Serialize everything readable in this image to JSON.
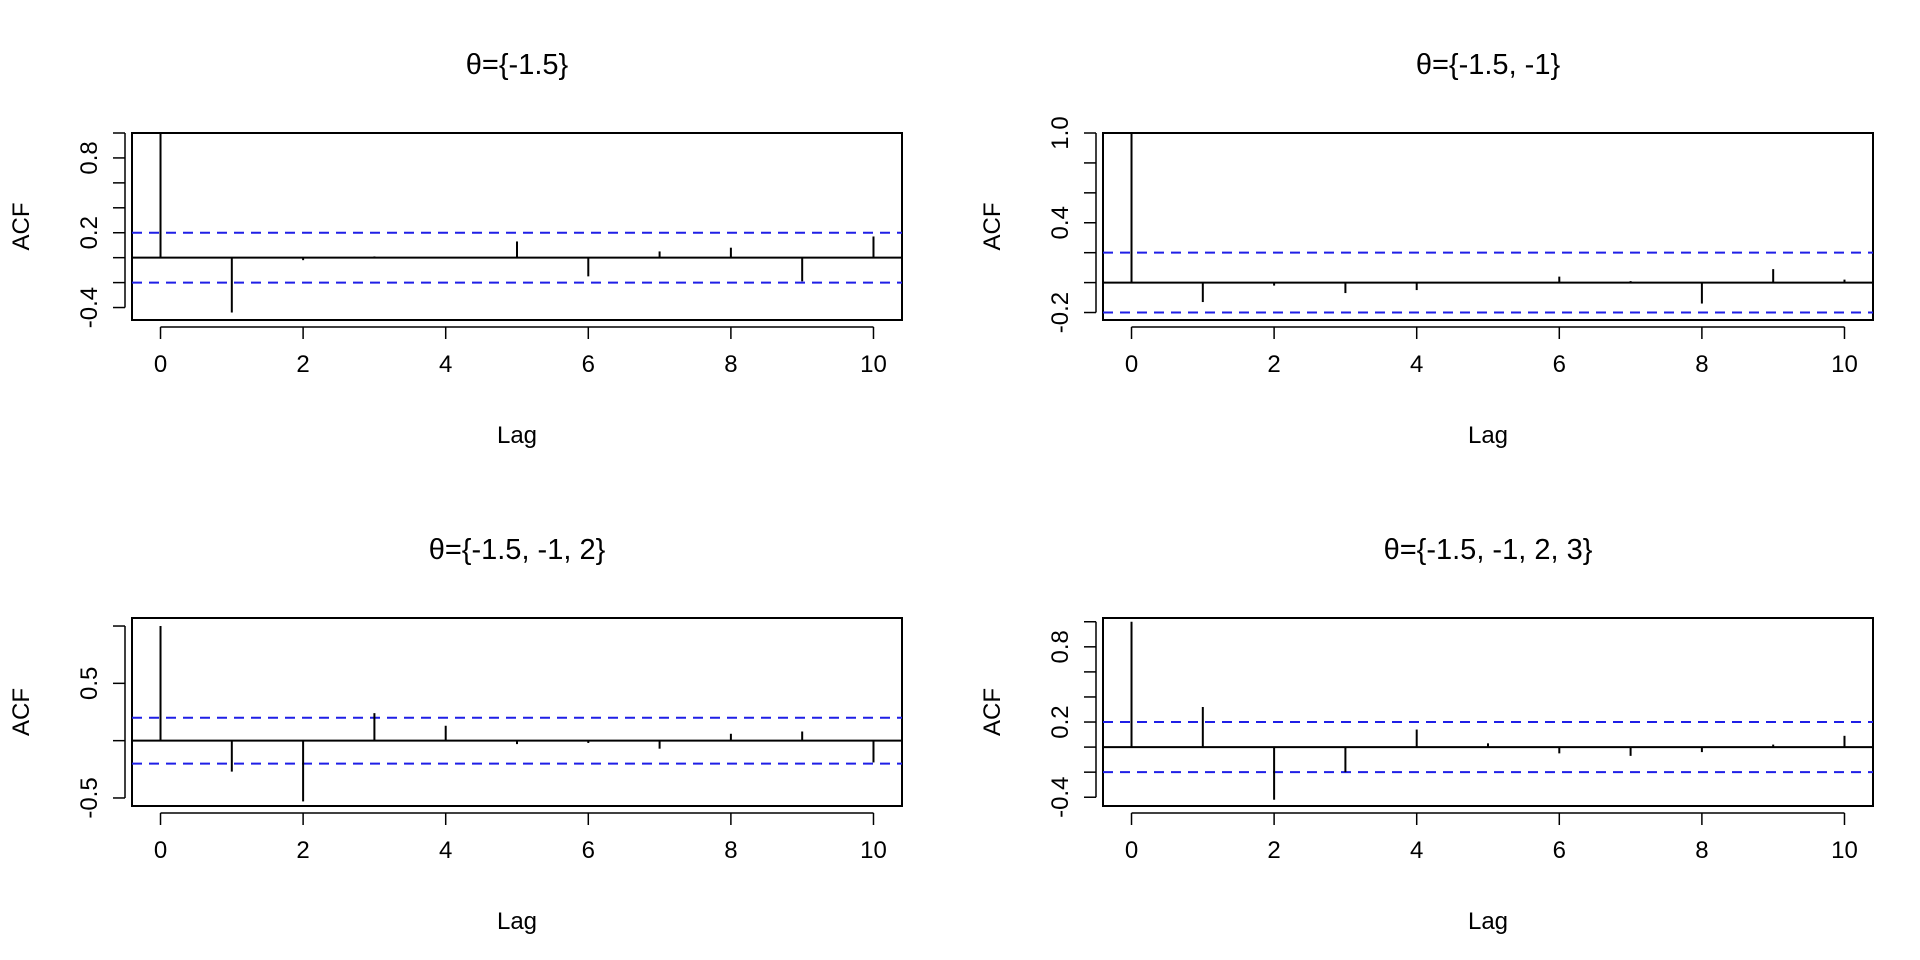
{
  "chart_data": [
    {
      "type": "bar",
      "title": "θ={-1.5}",
      "xlabel": "Lag",
      "ylabel": "ACF",
      "xlim": [
        -0.4,
        10.4
      ],
      "ylim": [
        -0.5,
        1.0
      ],
      "x_ticks": [
        0,
        2,
        4,
        6,
        8,
        10
      ],
      "x_tick_labels": [
        "0",
        "2",
        "4",
        "6",
        "8",
        "10"
      ],
      "y_ticks": [
        -0.4,
        -0.2,
        0.0,
        0.2,
        0.4,
        0.6,
        0.8,
        1.0
      ],
      "y_tick_labels": [
        "-0.4",
        "",
        "",
        "0.2",
        "",
        "",
        "0.8",
        ""
      ],
      "lags": [
        0,
        1,
        2,
        3,
        4,
        5,
        6,
        7,
        8,
        9,
        10
      ],
      "values": [
        1.0,
        -0.44,
        -0.02,
        0.01,
        0.0,
        0.13,
        -0.15,
        0.05,
        0.08,
        -0.19,
        0.17
      ],
      "ci": 0.2,
      "ci_color": "#1f1fe6",
      "bar_color": "#000000"
    },
    {
      "type": "bar",
      "title": "θ={-1.5, -1}",
      "xlabel": "Lag",
      "ylabel": "ACF",
      "xlim": [
        -0.4,
        10.4
      ],
      "ylim": [
        -0.25,
        1.0
      ],
      "x_ticks": [
        0,
        2,
        4,
        6,
        8,
        10
      ],
      "x_tick_labels": [
        "0",
        "2",
        "4",
        "6",
        "8",
        "10"
      ],
      "y_ticks": [
        -0.2,
        0.0,
        0.2,
        0.4,
        0.6,
        0.8,
        1.0
      ],
      "y_tick_labels": [
        "-0.2",
        "",
        "",
        "0.4",
        "",
        "",
        "1.0"
      ],
      "lags": [
        0,
        1,
        2,
        3,
        4,
        5,
        6,
        7,
        8,
        9,
        10
      ],
      "values": [
        1.0,
        -0.13,
        -0.02,
        -0.07,
        -0.05,
        0.0,
        0.04,
        0.01,
        -0.14,
        0.09,
        0.02
      ],
      "ci": 0.2,
      "ci_color": "#1f1fe6",
      "bar_color": "#000000"
    },
    {
      "type": "bar",
      "title": "θ={-1.5, -1, 2}",
      "xlabel": "Lag",
      "ylabel": "ACF",
      "xlim": [
        -0.4,
        10.4
      ],
      "ylim": [
        -0.57,
        1.07
      ],
      "x_ticks": [
        0,
        2,
        4,
        6,
        8,
        10
      ],
      "x_tick_labels": [
        "0",
        "2",
        "4",
        "6",
        "8",
        "10"
      ],
      "y_ticks": [
        -0.5,
        0.0,
        0.5,
        1.0
      ],
      "y_tick_labels": [
        "-0.5",
        "",
        "0.5",
        ""
      ],
      "lags": [
        0,
        1,
        2,
        3,
        4,
        5,
        6,
        7,
        8,
        9,
        10
      ],
      "values": [
        1.0,
        -0.27,
        -0.53,
        0.24,
        0.13,
        -0.03,
        -0.02,
        -0.07,
        0.06,
        0.08,
        -0.19
      ],
      "ci": 0.2,
      "ci_color": "#1f1fe6",
      "bar_color": "#000000"
    },
    {
      "type": "bar",
      "title": "θ={-1.5, -1, 2, 3}",
      "xlabel": "Lag",
      "ylabel": "ACF",
      "xlim": [
        -0.4,
        10.4
      ],
      "ylim": [
        -0.47,
        1.03
      ],
      "x_ticks": [
        0,
        2,
        4,
        6,
        8,
        10
      ],
      "x_tick_labels": [
        "0",
        "2",
        "4",
        "6",
        "8",
        "10"
      ],
      "y_ticks": [
        -0.4,
        -0.2,
        0.0,
        0.2,
        0.4,
        0.6,
        0.8,
        1.0
      ],
      "y_tick_labels": [
        "-0.4",
        "",
        "",
        "0.2",
        "",
        "",
        "0.8",
        ""
      ],
      "lags": [
        0,
        1,
        2,
        3,
        4,
        5,
        6,
        7,
        8,
        9,
        10
      ],
      "values": [
        1.0,
        0.32,
        -0.42,
        -0.2,
        0.14,
        0.03,
        -0.05,
        -0.07,
        -0.04,
        0.02,
        0.09
      ],
      "ci": 0.2,
      "ci_color": "#1f1fe6",
      "bar_color": "#000000"
    }
  ]
}
